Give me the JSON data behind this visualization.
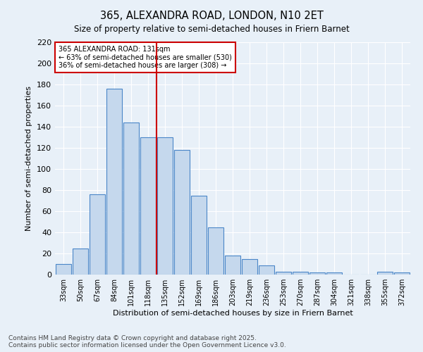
{
  "title": "365, ALEXANDRA ROAD, LONDON, N10 2ET",
  "subtitle": "Size of property relative to semi-detached houses in Friern Barnet",
  "xlabel": "Distribution of semi-detached houses by size in Friern Barnet",
  "ylabel": "Number of semi-detached properties",
  "categories": [
    "33sqm",
    "50sqm",
    "67sqm",
    "84sqm",
    "101sqm",
    "118sqm",
    "135sqm",
    "152sqm",
    "169sqm",
    "186sqm",
    "203sqm",
    "219sqm",
    "236sqm",
    "253sqm",
    "270sqm",
    "287sqm",
    "304sqm",
    "321sqm",
    "338sqm",
    "355sqm",
    "372sqm"
  ],
  "values": [
    10,
    25,
    76,
    176,
    144,
    130,
    130,
    118,
    75,
    45,
    18,
    15,
    9,
    3,
    3,
    2,
    2,
    0,
    0,
    3,
    2
  ],
  "bar_color": "#c5d8ed",
  "bar_edge_color": "#4a86c8",
  "vline_color": "#cc0000",
  "annotation_title": "365 ALEXANDRA ROAD: 131sqm",
  "annotation_line1": "← 63% of semi-detached houses are smaller (530)",
  "annotation_line2": "36% of semi-detached houses are larger (308) →",
  "annotation_box_color": "#cc0000",
  "ylim": [
    0,
    220
  ],
  "yticks": [
    0,
    20,
    40,
    60,
    80,
    100,
    120,
    140,
    160,
    180,
    200,
    220
  ],
  "footer": "Contains HM Land Registry data © Crown copyright and database right 2025.\nContains public sector information licensed under the Open Government Licence v3.0.",
  "bg_color": "#e8f0f8",
  "grid_color": "#ffffff"
}
